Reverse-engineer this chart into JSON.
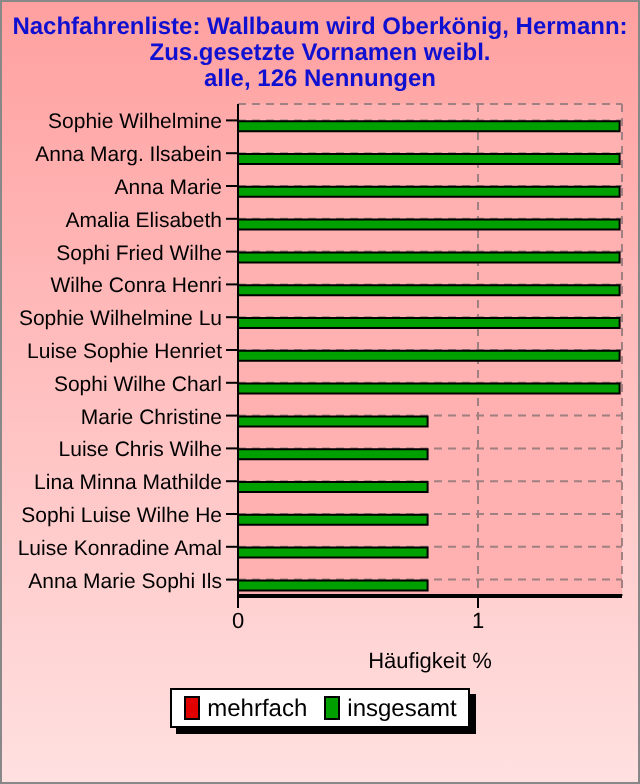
{
  "chart_data": {
    "type": "bar",
    "orientation": "horizontal",
    "title": "Nachfahrenliste: Wallbaum wird Oberkönig, Hermann:\nZus.gesetzte Vornamen weibl.\nalle, 126 Nennungen",
    "xlabel": "Häufigkeit %",
    "categories": [
      "Sophie Wilhelmine",
      "Anna Marg. Ilsabein",
      "Anna Marie",
      "Amalia Elisabeth",
      "Sophi Fried Wilhe",
      "Wilhe Conra Henri",
      "Sophie Wilhelmine Lu",
      "Luise Sophie Henriet",
      "Sophi Wilhe Charl",
      "Marie Christine",
      "Luise Chris Wilhe",
      "Lina Minna Mathilde",
      "Sophi Luise Wilhe He",
      "Luise Konradine Amal",
      "Anna Marie Sophi Ils"
    ],
    "series": [
      {
        "name": "mehrfach",
        "color": "#e00000",
        "values": [
          0,
          0,
          0,
          0,
          0,
          0,
          0,
          0,
          0,
          0,
          0,
          0,
          0,
          0,
          0
        ]
      },
      {
        "name": "insgesamt",
        "color": "#00a000",
        "values": [
          1.59,
          1.59,
          1.59,
          1.59,
          1.59,
          1.59,
          1.59,
          1.59,
          1.59,
          0.79,
          0.79,
          0.79,
          0.79,
          0.79,
          0.79
        ]
      }
    ],
    "xlim": [
      0,
      1.6
    ],
    "xticks": [
      0,
      1
    ],
    "grid": true,
    "legend": "bottom"
  }
}
